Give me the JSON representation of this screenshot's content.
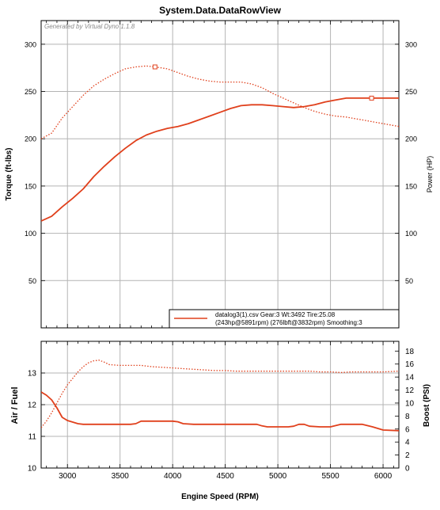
{
  "title": "System.Data.DataRowView",
  "watermark": "Generated by Virtual Dyno 1.1.8",
  "colors": {
    "series": "#e0401c",
    "grid": "#b4b4b4",
    "frame": "#000000"
  },
  "legend": {
    "line1": "datalog3(1).csv Gear:3 Wt:3492 Tire:25.08",
    "line2": "(243hp@5891rpm) (276lbft@3832rpm) Smoothing:3",
    "placement": "bottom-right"
  },
  "chart_data": [
    {
      "type": "line",
      "title": "System.Data.DataRowView",
      "ylabel": "Torque (ft-lbs)",
      "y2label": "Power (HP)",
      "xlim": [
        2750,
        6150
      ],
      "ylim": [
        0,
        325
      ],
      "y2lim": [
        0,
        325
      ],
      "yticks": [
        50,
        100,
        150,
        200,
        250,
        300
      ],
      "y2ticks": [
        50,
        100,
        150,
        200,
        250,
        300
      ],
      "xticks": [
        3000,
        3500,
        4000,
        4500,
        5000,
        5500,
        6000
      ],
      "grid": true,
      "series": [
        {
          "style": "solid",
          "axis": "right",
          "marker": {
            "x": 5891,
            "y": 243
          },
          "x": [
            2750,
            2850,
            2950,
            3050,
            3150,
            3250,
            3350,
            3450,
            3550,
            3650,
            3750,
            3850,
            3950,
            4050,
            4150,
            4250,
            4350,
            4450,
            4550,
            4650,
            4750,
            4850,
            4950,
            5050,
            5150,
            5250,
            5350,
            5450,
            5550,
            5650,
            5750,
            5891,
            5950,
            6050,
            6150
          ],
          "values": [
            113,
            118,
            128,
            137,
            147,
            160,
            171,
            181,
            190,
            198,
            204,
            208,
            211,
            213,
            216,
            220,
            224,
            228,
            232,
            235,
            236,
            236,
            235,
            234,
            233,
            234,
            236,
            239,
            241,
            243,
            243,
            243,
            243,
            243,
            243
          ]
        },
        {
          "style": "dotted",
          "axis": "left",
          "marker": {
            "x": 3832,
            "y": 276
          },
          "x": [
            2750,
            2850,
            2950,
            3050,
            3150,
            3250,
            3350,
            3450,
            3550,
            3650,
            3750,
            3832,
            3950,
            4050,
            4150,
            4250,
            4350,
            4450,
            4550,
            4650,
            4750,
            4850,
            4950,
            5050,
            5150,
            5250,
            5350,
            5450,
            5550,
            5650,
            5750,
            5850,
            5950,
            6050,
            6150
          ],
          "values": [
            200,
            206,
            222,
            234,
            246,
            256,
            263,
            269,
            274,
            276,
            277,
            276,
            274,
            270,
            266,
            263,
            261,
            260,
            260,
            260,
            258,
            254,
            248,
            243,
            238,
            233,
            229,
            226,
            224,
            223,
            221,
            219,
            217,
            215,
            213
          ]
        }
      ]
    },
    {
      "type": "line",
      "xlabel": "Engine Speed (RPM)",
      "ylabel": "Air / Fuel",
      "y2label": "Boost (PSI)",
      "xlim": [
        2750,
        6150
      ],
      "ylim": [
        10,
        14
      ],
      "y2lim": [
        0,
        19.5
      ],
      "yticks": [
        10,
        11,
        12,
        13
      ],
      "y2ticks": [
        0,
        2,
        4,
        6,
        8,
        10,
        12,
        14,
        16,
        18
      ],
      "xticks": [
        3000,
        3500,
        4000,
        4500,
        5000,
        5500,
        6000
      ],
      "grid": true,
      "series": [
        {
          "style": "solid",
          "axis": "left",
          "x": [
            2750,
            2800,
            2850,
            2900,
            2950,
            3000,
            3050,
            3100,
            3150,
            3200,
            3300,
            3400,
            3500,
            3600,
            3650,
            3700,
            3800,
            3900,
            4000,
            4050,
            4100,
            4200,
            4300,
            4400,
            4500,
            4600,
            4700,
            4800,
            4850,
            4900,
            5000,
            5100,
            5150,
            5200,
            5250,
            5300,
            5400,
            5500,
            5600,
            5700,
            5800,
            5900,
            6000,
            6150
          ],
          "values": [
            12.4,
            12.3,
            12.15,
            11.9,
            11.6,
            11.5,
            11.45,
            11.4,
            11.38,
            11.38,
            11.38,
            11.38,
            11.38,
            11.38,
            11.4,
            11.48,
            11.48,
            11.48,
            11.48,
            11.46,
            11.4,
            11.38,
            11.38,
            11.38,
            11.38,
            11.38,
            11.38,
            11.38,
            11.33,
            11.3,
            11.3,
            11.3,
            11.32,
            11.38,
            11.38,
            11.32,
            11.3,
            11.3,
            11.38,
            11.38,
            11.38,
            11.3,
            11.2,
            11.18
          ]
        },
        {
          "style": "dotted",
          "axis": "right",
          "x": [
            2750,
            2800,
            2850,
            2900,
            2950,
            3000,
            3050,
            3100,
            3150,
            3200,
            3250,
            3300,
            3350,
            3400,
            3500,
            3600,
            3700,
            3800,
            3900,
            4000,
            4100,
            4200,
            4300,
            4400,
            4500,
            4600,
            4700,
            4800,
            4900,
            5000,
            5100,
            5200,
            5300,
            5400,
            5500,
            5600,
            5700,
            5800,
            5900,
            6000,
            6150
          ],
          "values": [
            6.2,
            7.2,
            8.5,
            10.0,
            11.5,
            12.8,
            13.8,
            14.8,
            15.6,
            16.2,
            16.5,
            16.6,
            16.3,
            15.9,
            15.8,
            15.8,
            15.8,
            15.6,
            15.5,
            15.4,
            15.3,
            15.2,
            15.1,
            15.0,
            15.0,
            14.9,
            14.9,
            14.9,
            14.9,
            14.9,
            14.9,
            14.9,
            14.9,
            14.8,
            14.8,
            14.7,
            14.8,
            14.8,
            14.8,
            14.8,
            14.9
          ]
        }
      ]
    }
  ]
}
